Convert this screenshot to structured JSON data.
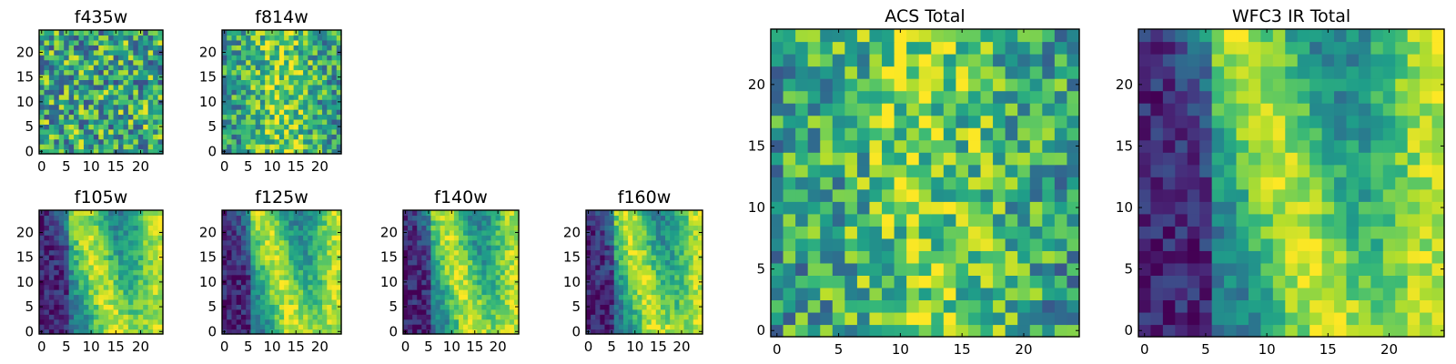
{
  "chart_data": [
    {
      "type": "heatmap",
      "title": "f435w",
      "grid_size": 25,
      "xlim": [
        -0.5,
        24.5
      ],
      "ylim": [
        -0.5,
        24.5
      ],
      "xticks": [
        0,
        5,
        10,
        15,
        20
      ],
      "yticks": [
        0,
        5,
        10,
        15,
        20
      ],
      "pattern": "noise",
      "seed": 11
    },
    {
      "type": "heatmap",
      "title": "f814w",
      "grid_size": 25,
      "xlim": [
        -0.5,
        24.5
      ],
      "ylim": [
        -0.5,
        24.5
      ],
      "xticks": [
        0,
        5,
        10,
        15,
        20
      ],
      "yticks": [
        0,
        5,
        10,
        15,
        20
      ],
      "pattern": "noise-band",
      "seed": 23
    },
    {
      "type": "heatmap",
      "title": "f105w",
      "grid_size": 25,
      "xlim": [
        -0.5,
        24.5
      ],
      "ylim": [
        -0.5,
        24.5
      ],
      "xticks": [
        0,
        5,
        10,
        15,
        20
      ],
      "yticks": [
        0,
        5,
        10,
        15,
        20
      ],
      "pattern": "ir",
      "seed": 37
    },
    {
      "type": "heatmap",
      "title": "f125w",
      "grid_size": 25,
      "xlim": [
        -0.5,
        24.5
      ],
      "ylim": [
        -0.5,
        24.5
      ],
      "xticks": [
        0,
        5,
        10,
        15,
        20
      ],
      "yticks": [
        0,
        5,
        10,
        15,
        20
      ],
      "pattern": "ir",
      "seed": 41
    },
    {
      "type": "heatmap",
      "title": "f140w",
      "grid_size": 25,
      "xlim": [
        -0.5,
        24.5
      ],
      "ylim": [
        -0.5,
        24.5
      ],
      "xticks": [
        0,
        5,
        10,
        15,
        20
      ],
      "yticks": [
        0,
        5,
        10,
        15,
        20
      ],
      "pattern": "ir",
      "seed": 53
    },
    {
      "type": "heatmap",
      "title": "f160w",
      "grid_size": 25,
      "xlim": [
        -0.5,
        24.5
      ],
      "ylim": [
        -0.5,
        24.5
      ],
      "xticks": [
        0,
        5,
        10,
        15,
        20
      ],
      "yticks": [
        0,
        5,
        10,
        15,
        20
      ],
      "pattern": "ir",
      "seed": 67
    },
    {
      "type": "heatmap",
      "title": "ACS Total",
      "grid_size": 25,
      "xlim": [
        -0.5,
        24.5
      ],
      "ylim": [
        -0.5,
        24.5
      ],
      "xticks": [
        0,
        5,
        10,
        15,
        20
      ],
      "yticks": [
        0,
        5,
        10,
        15,
        20
      ],
      "pattern": "noise-band",
      "seed": 79
    },
    {
      "type": "heatmap",
      "title": "WFC3 IR Total",
      "grid_size": 25,
      "xlim": [
        -0.5,
        24.5
      ],
      "ylim": [
        -0.5,
        24.5
      ],
      "xticks": [
        0,
        5,
        10,
        15,
        20
      ],
      "yticks": [
        0,
        5,
        10,
        15,
        20
      ],
      "pattern": "ir",
      "seed": 97
    }
  ],
  "colormap": "viridis"
}
